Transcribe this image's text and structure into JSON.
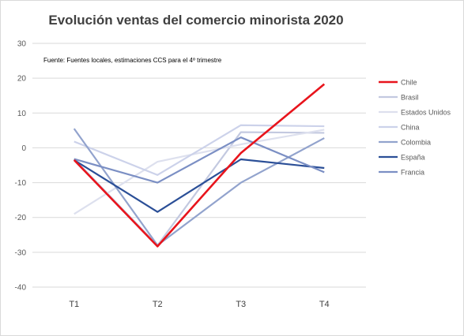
{
  "chart_data": {
    "type": "line",
    "title": "Evolución ventas del comercio minorista 2020",
    "note": "Fuente: Fuentes locales, estimaciones CCS para el 4º trimestre",
    "categories": [
      "T1",
      "T2",
      "T3",
      "T4"
    ],
    "ylim": [
      -40,
      30
    ],
    "yticks": [
      30,
      20,
      10,
      0,
      -10,
      -20,
      -30,
      -40
    ],
    "grid": true,
    "legend_position": "right",
    "series": [
      {
        "name": "Chile",
        "color": "#e8141c",
        "values": [
          -3.5,
          -28.3,
          -1.5,
          18.3
        ]
      },
      {
        "name": "Brasil",
        "color": "#c3c9e0",
        "values": [
          -3.2,
          -28.0,
          4.5,
          4.3
        ]
      },
      {
        "name": "Estados Unidos",
        "color": "#dde0ee",
        "values": [
          -19.0,
          -4.0,
          1.0,
          5.2
        ]
      },
      {
        "name": "China",
        "color": "#ccd2ea",
        "values": [
          1.8,
          -7.8,
          6.5,
          6.2
        ]
      },
      {
        "name": "Colombia",
        "color": "#92a3cd",
        "values": [
          5.5,
          -28.0,
          -10.0,
          2.8
        ]
      },
      {
        "name": "España",
        "color": "#2b4f97",
        "values": [
          -3.5,
          -18.4,
          -3.3,
          -5.8
        ]
      },
      {
        "name": "Francia",
        "color": "#7b8fc4",
        "values": [
          -3.2,
          -10.0,
          3.0,
          -7.0
        ]
      }
    ]
  }
}
